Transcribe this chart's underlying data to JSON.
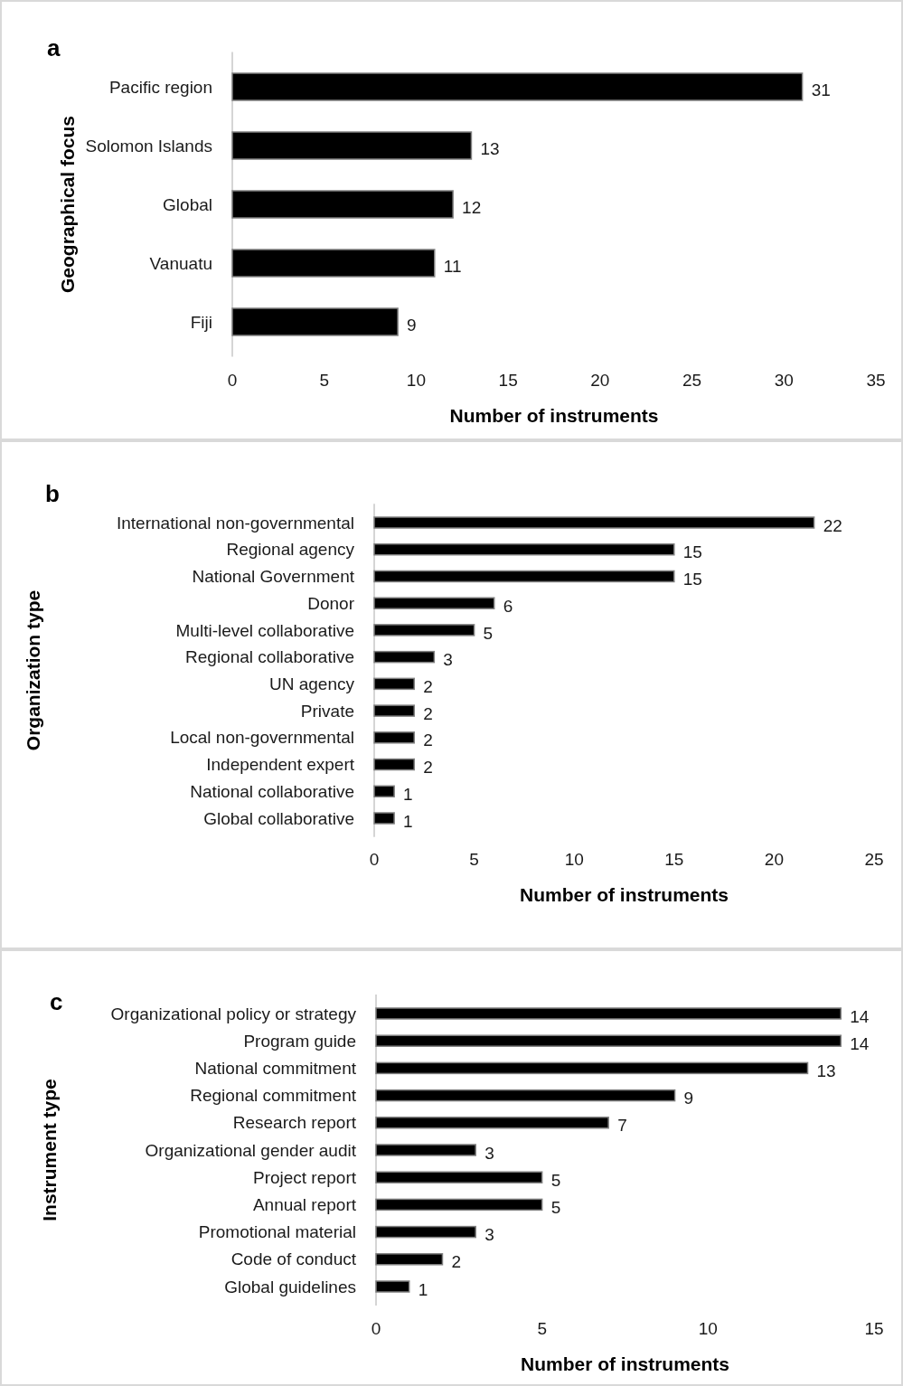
{
  "chart_data": [
    {
      "type": "bar",
      "orientation": "horizontal",
      "title": "a",
      "ylabel": "Geographical focus",
      "xlabel": "Number of instruments",
      "categories": [
        "Pacific region",
        "Solomon Islands",
        "Global",
        "Vanuatu",
        "Fiji"
      ],
      "values": [
        31,
        13,
        12,
        11,
        9
      ],
      "color": "#000000",
      "xlim": [
        0,
        35
      ],
      "xticks": [
        0,
        5,
        10,
        15,
        20,
        25,
        30,
        35
      ],
      "data_labels": true
    },
    {
      "type": "bar",
      "orientation": "horizontal",
      "title": "b",
      "ylabel": "Organization type",
      "xlabel": "Number of instruments",
      "categories": [
        "International non-governmental",
        "Regional agency",
        "National Government",
        "Donor",
        "Multi-level collaborative",
        "Regional collaborative",
        "UN agency",
        "Private",
        "Local non-governmental",
        "Independent expert",
        "National collaborative",
        "Global collaborative"
      ],
      "values": [
        22,
        15,
        15,
        6,
        5,
        3,
        2,
        2,
        2,
        2,
        1,
        1
      ],
      "color": "#000000",
      "xlim": [
        0,
        25
      ],
      "xticks": [
        0,
        5,
        10,
        15,
        20,
        25
      ],
      "data_labels": true
    },
    {
      "type": "bar",
      "orientation": "horizontal",
      "title": "c",
      "ylabel": "Instrument type",
      "xlabel": "Number of instruments",
      "categories": [
        "Organizational policy or strategy",
        "Program guide",
        "National commitment",
        "Regional commitment",
        "Research report",
        "Organizational gender audit",
        "Project report",
        "Annual report",
        "Promotional material",
        "Code of conduct",
        "Global guidelines"
      ],
      "values": [
        14,
        14,
        13,
        9,
        7,
        3,
        5,
        5,
        3,
        2,
        1
      ],
      "color": "#000000",
      "xlim": [
        0,
        15
      ],
      "xticks": [
        0,
        5,
        10,
        15
      ],
      "data_labels": true
    }
  ]
}
